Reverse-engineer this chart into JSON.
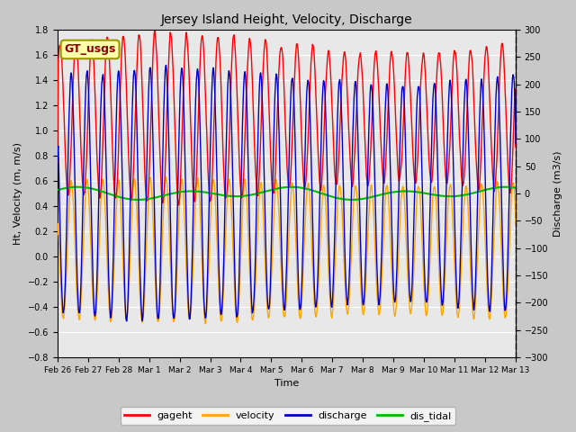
{
  "title": "Jersey Island Height, Velocity, Discharge",
  "xlabel": "Time",
  "ylabel_left": "Ht, Velocity (m, m/s)",
  "ylabel_right": "Discharge (m3/s)",
  "ylim_left": [
    -0.8,
    1.8
  ],
  "ylim_right": [
    -300,
    300
  ],
  "yticks_left": [
    -0.8,
    -0.6,
    -0.4,
    -0.2,
    0.0,
    0.2,
    0.4,
    0.6,
    0.8,
    1.0,
    1.2,
    1.4,
    1.6,
    1.8
  ],
  "yticks_right": [
    -300,
    -250,
    -200,
    -150,
    -100,
    -50,
    0,
    50,
    100,
    150,
    200,
    250,
    300
  ],
  "colors": {
    "gageht": "#ff0000",
    "velocity": "#ffa500",
    "discharge": "#0000cd",
    "dis_tidal": "#00bb00"
  },
  "linewidths": {
    "gageht": 1.0,
    "velocity": 1.0,
    "discharge": 1.0,
    "dis_tidal": 1.5
  },
  "annotation_text": "GT_usgs",
  "annotation_color": "#8B0000",
  "annotation_bg": "#ffffaa",
  "annotation_border": "#999900",
  "bg_color": "#c8c8c8",
  "plot_bg": "#e8e8e8",
  "tidal_period_hours": 12.4,
  "legend_labels": [
    "gageht",
    "velocity",
    "discharge",
    "dis_tidal"
  ],
  "xtick_labels": [
    "Feb 26",
    "Feb 27",
    "Feb 28",
    "Mar 1",
    "Mar 2",
    "Mar 3",
    "Mar 4",
    "Mar 5",
    "Mar 6",
    "Mar 7",
    "Mar 8",
    "Mar 9",
    "Mar 10",
    "Mar 11",
    "Mar 12",
    "Mar 13"
  ],
  "figsize": [
    6.4,
    4.8
  ],
  "dpi": 100
}
